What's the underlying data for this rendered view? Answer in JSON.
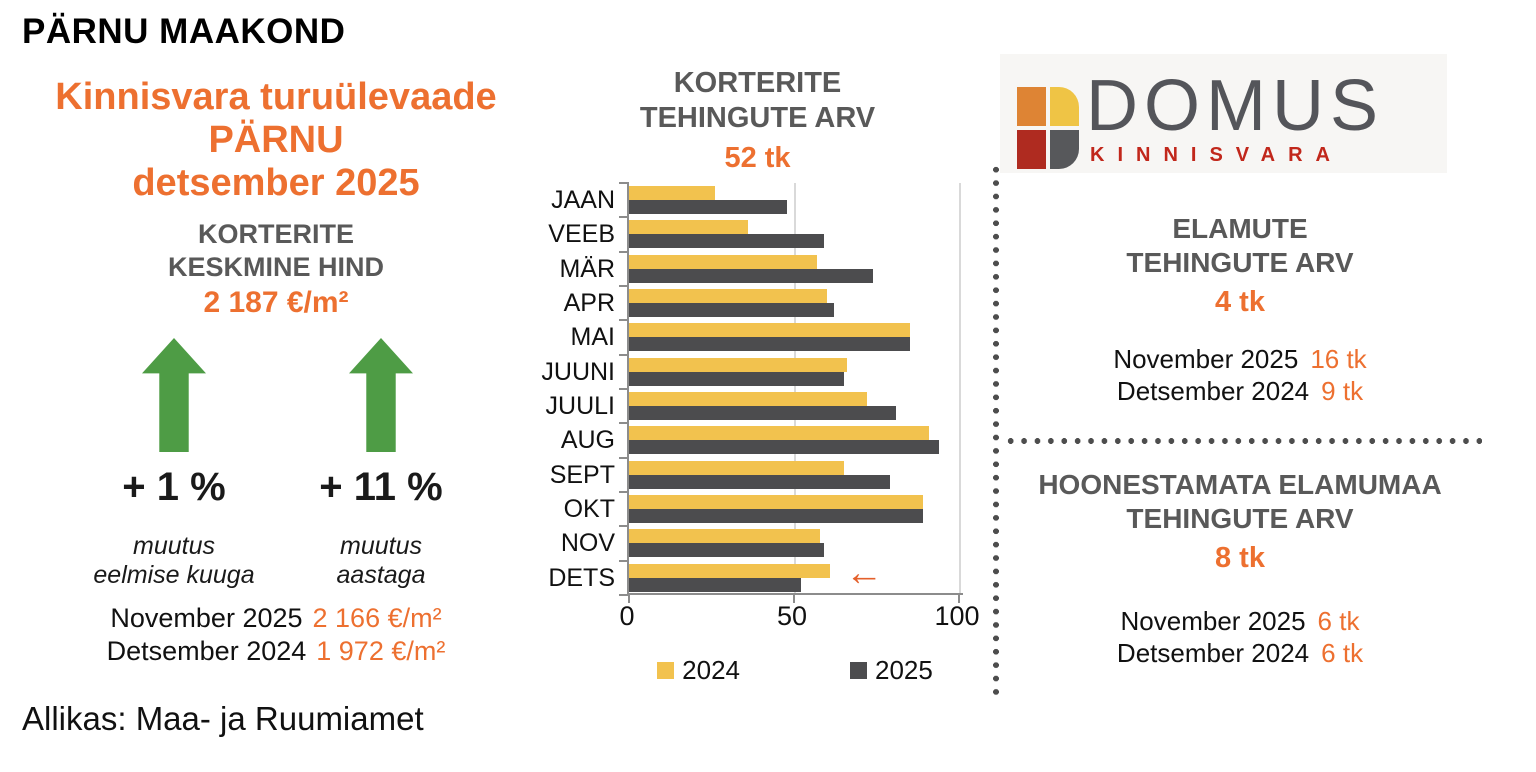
{
  "header": {
    "county": "PÄRNU MAAKOND"
  },
  "left_panel": {
    "heading_line1": "Kinnisvara turuülevaade",
    "heading_line2": "PÄRNU",
    "heading_line3": "detsember 2025",
    "subheading_line1": "KORTERITE",
    "subheading_line2": "KESKMINE HIND",
    "price": "2 187 €/m²",
    "change_month": {
      "value": "+ 1 %",
      "caption_line1": "muutus",
      "caption_line2": "eelmise kuuga"
    },
    "change_year": {
      "value": "+ 11 %",
      "caption_line1": "muutus",
      "caption_line2": "aastaga"
    },
    "history": [
      {
        "label": "November 2025",
        "value": "2 166 €/m²"
      },
      {
        "label": "Detsember 2024",
        "value": "1 972 €/m²"
      }
    ]
  },
  "chart": {
    "title_line1": "KORTERITE",
    "title_line2": "TEHINGUTE ARV",
    "highlight": "52 tk",
    "arrow": "←"
  },
  "chart_data": {
    "type": "bar",
    "orientation": "horizontal",
    "title": "KORTERITE TEHINGUTE ARV",
    "subtitle": "52 tk",
    "categories": [
      "JAAN",
      "VEEB",
      "MÄR",
      "APR",
      "MAI",
      "JUUNI",
      "JUULI",
      "AUG",
      "SEPT",
      "OKT",
      "NOV",
      "DETS"
    ],
    "series": [
      {
        "name": "2024",
        "color": "#F2C24E",
        "values": [
          26,
          36,
          57,
          60,
          85,
          66,
          72,
          91,
          65,
          89,
          58,
          61
        ]
      },
      {
        "name": "2025",
        "color": "#4C4C4E",
        "values": [
          48,
          59,
          74,
          62,
          85,
          65,
          81,
          94,
          79,
          89,
          59,
          52
        ]
      }
    ],
    "xlim": [
      0,
      100
    ],
    "xticks": [
      0,
      50,
      100
    ],
    "grid": true,
    "legend_position": "bottom",
    "annotation": {
      "text": "←",
      "category": "DETS"
    }
  },
  "logo": {
    "name": "DOMUS",
    "subname": "KINNISVARA",
    "name_color": "#54555A",
    "subname_color": "#C1271B",
    "icon_colors": {
      "top_left": "#DE8434",
      "top_right": "#EFC445",
      "bottom_left": "#AF2B20",
      "bottom_right": "#57585B"
    }
  },
  "right_panel": {
    "section_elamud": {
      "title_line1": "ELAMUTE",
      "title_line2": "TEHINGUTE ARV",
      "highlight": "4 tk",
      "rows": [
        {
          "label": "November 2025",
          "value": "16 tk"
        },
        {
          "label": "Detsember 2024",
          "value": "9 tk"
        }
      ]
    },
    "section_elamumaa": {
      "title_line1": "HOONESTAMATA ELAMUMAA",
      "title_line2": "TEHINGUTE ARV",
      "highlight": "8 tk",
      "rows": [
        {
          "label": "November 2025",
          "value": "6 tk"
        },
        {
          "label": "Detsember 2024",
          "value": "6 tk"
        }
      ]
    }
  },
  "footer": {
    "source": "Allikas: Maa- ja Ruumiamet"
  },
  "colors": {
    "orange": "#ED7030",
    "heading_gray": "#595959",
    "green_arrow": "#4E9C45",
    "bar_2024": "#F2C24E",
    "bar_2025": "#4C4C4E",
    "dotted_line": "#4D4D4D"
  }
}
